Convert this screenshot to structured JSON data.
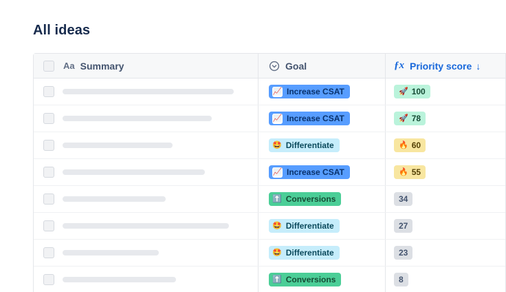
{
  "page": {
    "title": "All ideas"
  },
  "table": {
    "header": {
      "summary": {
        "icon": "Aa",
        "label": "Summary"
      },
      "goal": {
        "icon": "circle-chevron-down",
        "label": "Goal"
      },
      "priority": {
        "icon": "ƒx",
        "label": "Priority score",
        "sort": "↓"
      }
    },
    "colors": {
      "header_text": "#44546f",
      "sorted_column_text": "#1868db",
      "header_bg": "#f7f8f9",
      "border": "#e4e6ea"
    },
    "goal_styles": {
      "increase_csat": {
        "bg": "#579dff",
        "text": "#09326c",
        "emoji_chip": true
      },
      "differentiate": {
        "bg": "#c6edfb",
        "text": "#0b4a5c",
        "emoji_chip": false
      },
      "conversions": {
        "bg": "#4bce97",
        "text": "#164b35",
        "emoji_chip": false
      }
    },
    "score_styles": {
      "green": {
        "bg": "#baf3db",
        "text": "#164b35"
      },
      "yellow": {
        "bg": "#f8e6a0",
        "text": "#533f04"
      },
      "gray": {
        "bg": "#dcdfe4",
        "text": "#44546f"
      }
    },
    "rows": [
      {
        "summary_width": 249,
        "goal": {
          "label": "Increase CSAT",
          "emoji": "📈",
          "style": "increase_csat"
        },
        "score": {
          "value": "100",
          "emoji": "🚀",
          "style": "green"
        }
      },
      {
        "summary_width": 217,
        "goal": {
          "label": "Increase CSAT",
          "emoji": "📈",
          "style": "increase_csat"
        },
        "score": {
          "value": "78",
          "emoji": "🚀",
          "style": "green"
        }
      },
      {
        "summary_width": 160,
        "goal": {
          "label": "Differentiate",
          "emoji": "🤩",
          "style": "differentiate"
        },
        "score": {
          "value": "60",
          "emoji": "🔥",
          "style": "yellow"
        }
      },
      {
        "summary_width": 207,
        "goal": {
          "label": "Increase CSAT",
          "emoji": "📈",
          "style": "increase_csat"
        },
        "score": {
          "value": "55",
          "emoji": "🔥",
          "style": "yellow"
        }
      },
      {
        "summary_width": 150,
        "goal": {
          "label": "Conversions",
          "emoji": "⬆️",
          "style": "conversions"
        },
        "score": {
          "value": "34",
          "emoji": "",
          "style": "gray"
        }
      },
      {
        "summary_width": 242,
        "goal": {
          "label": "Differentiate",
          "emoji": "🤩",
          "style": "differentiate"
        },
        "score": {
          "value": "27",
          "emoji": "",
          "style": "gray"
        }
      },
      {
        "summary_width": 140,
        "goal": {
          "label": "Differentiate",
          "emoji": "🤩",
          "style": "differentiate"
        },
        "score": {
          "value": "23",
          "emoji": "",
          "style": "gray"
        }
      },
      {
        "summary_width": 165,
        "goal": {
          "label": "Conversions",
          "emoji": "⬆️",
          "style": "conversions"
        },
        "score": {
          "value": "8",
          "emoji": "",
          "style": "gray"
        }
      }
    ]
  }
}
